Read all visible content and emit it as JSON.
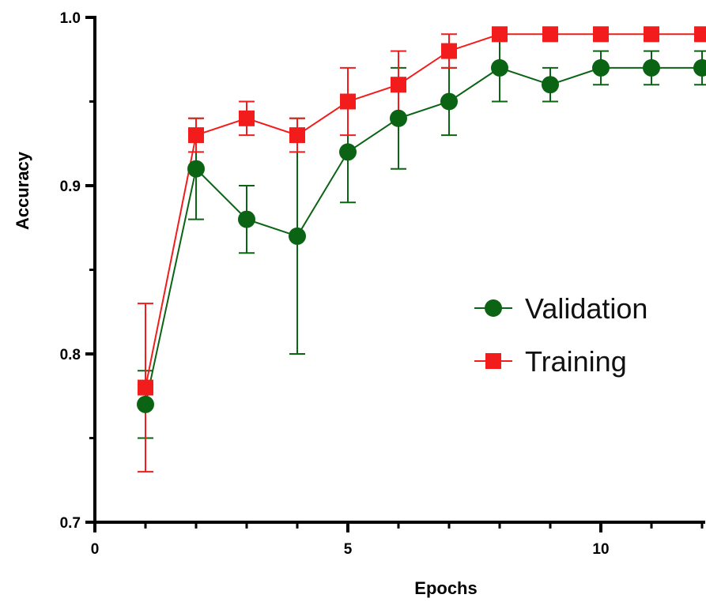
{
  "chart_data": {
    "type": "line",
    "xlabel": "Epochs",
    "ylabel": "Accuracy",
    "xlim": [
      0,
      12
    ],
    "ylim": [
      0.7,
      1.0
    ],
    "x_ticks": [
      0,
      5,
      10
    ],
    "x_tick_labels": [
      "0",
      "5",
      "10"
    ],
    "y_ticks": [
      0.7,
      0.8,
      0.9,
      1.0
    ],
    "y_tick_labels": [
      "0.7",
      "0.8",
      "0.9",
      "1.0"
    ],
    "grid": false,
    "legend_position": "center-right",
    "x": [
      1,
      2,
      3,
      4,
      5,
      6,
      7,
      8,
      9,
      10,
      11,
      12
    ],
    "series": [
      {
        "name": "Validation",
        "color": "#0b6414",
        "marker": "circle",
        "values": [
          0.77,
          0.91,
          0.88,
          0.87,
          0.92,
          0.94,
          0.95,
          0.97,
          0.96,
          0.97,
          0.97,
          0.97
        ],
        "error_low": [
          0.75,
          0.88,
          0.86,
          0.8,
          0.89,
          0.91,
          0.93,
          0.95,
          0.95,
          0.96,
          0.96,
          0.96
        ],
        "error_high": [
          0.79,
          0.94,
          0.9,
          0.94,
          0.95,
          0.97,
          0.97,
          0.99,
          0.97,
          0.98,
          0.98,
          0.98
        ]
      },
      {
        "name": "Training",
        "color": "#f21c1c",
        "marker": "square",
        "values": [
          0.78,
          0.93,
          0.94,
          0.93,
          0.95,
          0.96,
          0.98,
          0.99,
          0.99,
          0.99,
          0.99,
          0.99
        ],
        "error_low": [
          0.73,
          0.92,
          0.93,
          0.92,
          0.93,
          0.94,
          0.97,
          0.99,
          0.99,
          0.99,
          0.99,
          0.99
        ],
        "error_high": [
          0.83,
          0.94,
          0.95,
          0.94,
          0.97,
          0.98,
          0.99,
          0.99,
          0.99,
          0.99,
          0.99,
          0.99
        ]
      }
    ]
  }
}
